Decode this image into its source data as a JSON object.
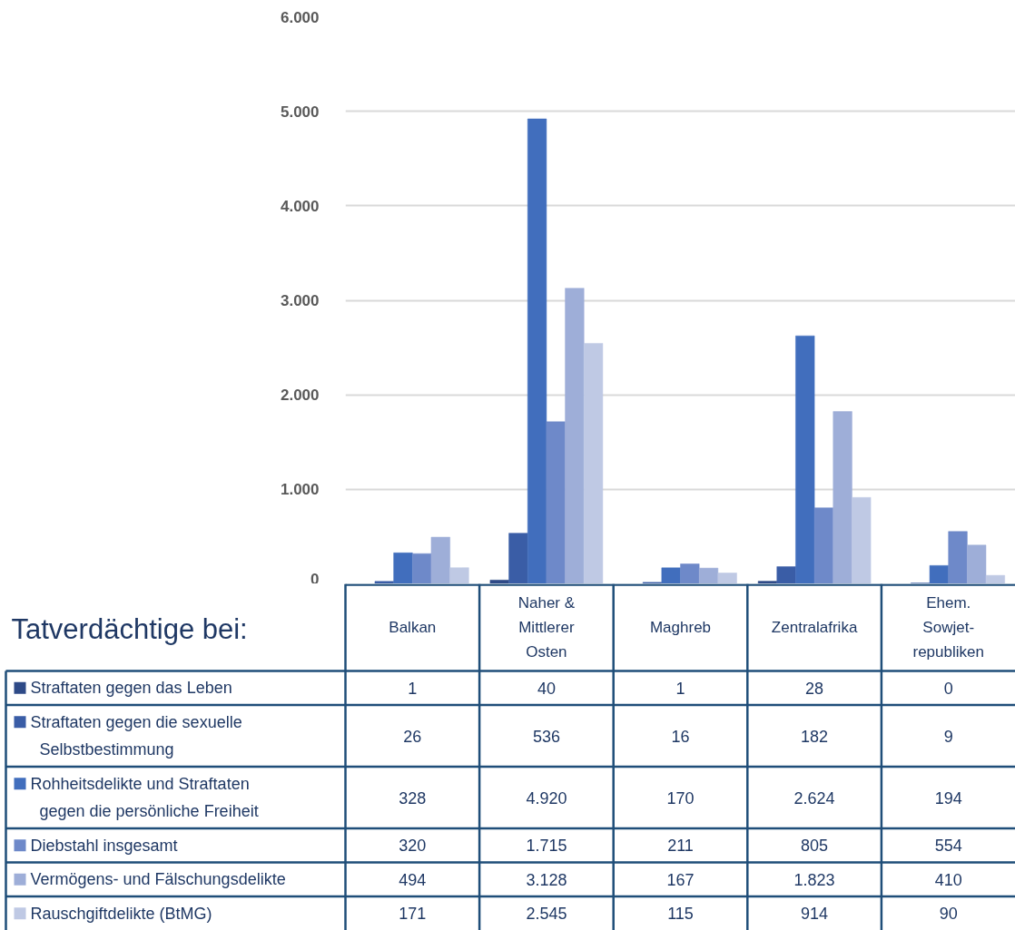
{
  "chart_data": {
    "type": "bar",
    "legend_title": "Tatverdächtige bei:",
    "categories": [
      "Balkan",
      "Naher & Mittlerer Osten",
      "Maghreb",
      "Zentralafrika",
      "Ehem. Sowjet-republiken"
    ],
    "series": [
      {
        "name": "Straftaten gegen das Leben",
        "color": "#2e4a87",
        "values": [
          1,
          40,
          1,
          28,
          0
        ],
        "value_labels": [
          "1",
          "40",
          "1",
          "28",
          "0"
        ]
      },
      {
        "name": "Straftaten gegen die sexuelle Selbstbestimmung",
        "color": "#3a5da6",
        "values": [
          26,
          536,
          16,
          182,
          9
        ],
        "value_labels": [
          "26",
          "536",
          "16",
          "182",
          "9"
        ]
      },
      {
        "name": "Rohheitsdelikte und Straftaten gegen die persönliche Freiheit",
        "color": "#416ebd",
        "values": [
          328,
          4920,
          170,
          2624,
          194
        ],
        "value_labels": [
          "328",
          "4.920",
          "170",
          "2.624",
          "194"
        ]
      },
      {
        "name": "Diebstahl insgesamt",
        "color": "#6e89c9",
        "values": [
          320,
          1715,
          211,
          805,
          554
        ],
        "value_labels": [
          "320",
          "1.715",
          "211",
          "805",
          "554"
        ]
      },
      {
        "name": "Vermögens- und Fälschungsdelikte",
        "color": "#9eaed8",
        "values": [
          494,
          3128,
          167,
          1823,
          410
        ],
        "value_labels": [
          "494",
          "3.128",
          "167",
          "1.823",
          "410"
        ]
      },
      {
        "name": "Rauschgiftdelikte (BtMG)",
        "color": "#bfc9e4",
        "values": [
          171,
          2545,
          115,
          914,
          90
        ],
        "value_labels": [
          "171",
          "2.545",
          "115",
          "914",
          "90"
        ]
      }
    ],
    "ylim": [
      0,
      6000
    ],
    "yticks": [
      0,
      {
        "value": 1000,
        "label": "1.000"
      },
      {
        "value": 2000,
        "label": "2.000"
      },
      {
        "value": 3000,
        "label": "3.000"
      },
      {
        "value": 4000,
        "label": "4.000"
      },
      {
        "value": 5000,
        "label": "5.000"
      },
      {
        "value": 6000,
        "label": "6.000"
      }
    ],
    "grid": "y",
    "legend": "bottom"
  }
}
